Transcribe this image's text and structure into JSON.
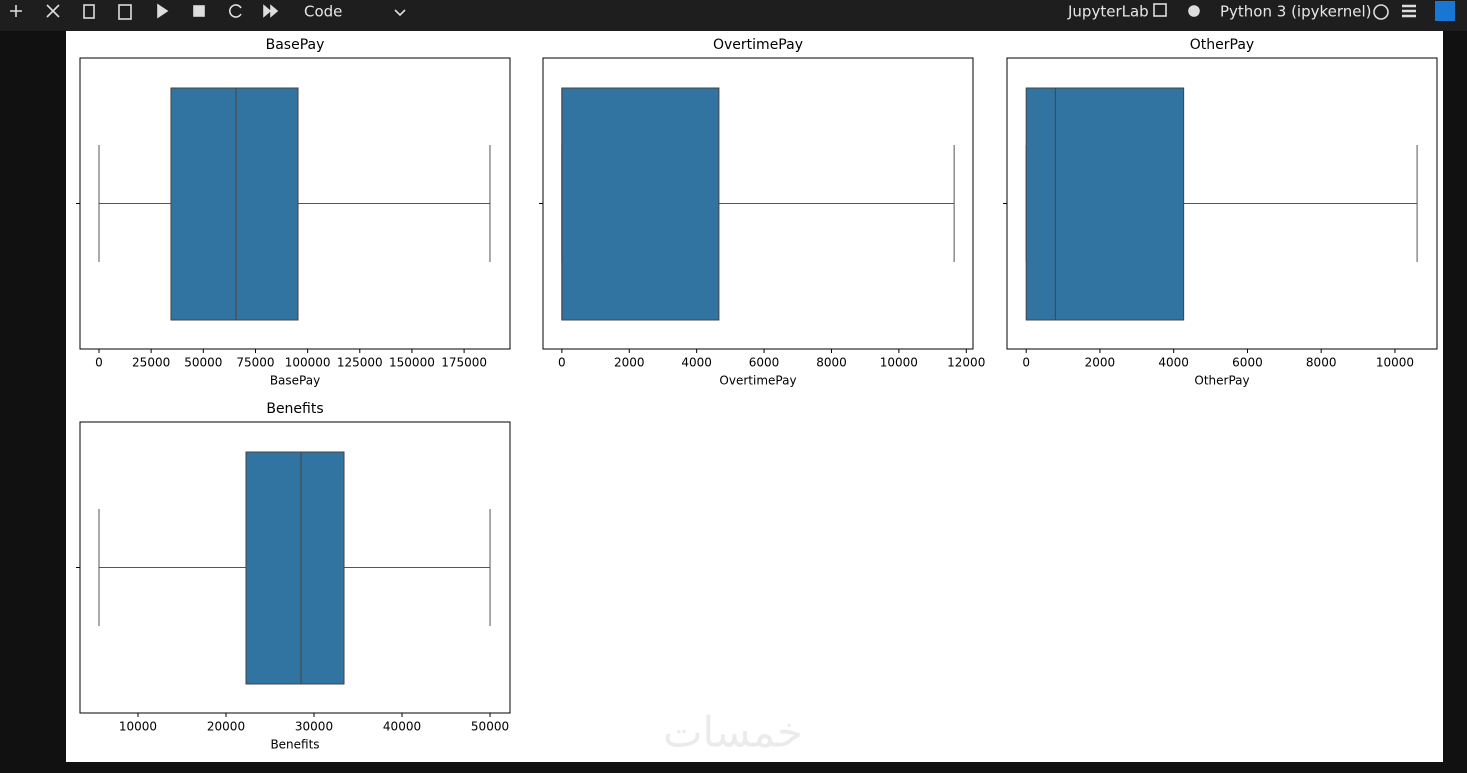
{
  "toolbar": {
    "cell_type": "Code",
    "app": "JupyterLab",
    "kernel": "Python 3 (ipykernel)"
  },
  "watermark": "خمسات",
  "chart_data": [
    {
      "type": "box",
      "title": "BasePay",
      "xlabel": "BasePay",
      "color": "#3274a1",
      "min": 0,
      "q1": 34500,
      "median": 65700,
      "q3": 95400,
      "max": 187400,
      "xlim": [
        -9100,
        197000
      ],
      "xticks": [
        0,
        25000,
        50000,
        75000,
        100000,
        125000,
        150000,
        175000
      ]
    },
    {
      "type": "box",
      "title": "OvertimePay",
      "xlabel": "OvertimePay",
      "color": "#3274a1",
      "min": 0,
      "q1": 0,
      "median": 0,
      "q3": 4660,
      "max": 11640,
      "xlim": [
        -560,
        12200
      ],
      "xticks": [
        0,
        2000,
        4000,
        6000,
        8000,
        10000,
        12000
      ]
    },
    {
      "type": "box",
      "title": "OtherPay",
      "xlabel": "OtherPay",
      "color": "#3274a1",
      "min": 0,
      "q1": 0,
      "median": 790,
      "q3": 4270,
      "max": 10600,
      "xlim": [
        -520,
        11140
      ],
      "xticks": [
        0,
        2000,
        4000,
        6000,
        8000,
        10000
      ]
    },
    {
      "type": "box",
      "title": "Benefits",
      "xlabel": "Benefits",
      "color": "#3274a1",
      "min": 5570,
      "q1": 22270,
      "median": 28520,
      "q3": 33410,
      "max": 50000,
      "xlim": [
        3410,
        52270
      ],
      "xticks": [
        10000,
        20000,
        30000,
        40000,
        50000
      ]
    }
  ]
}
